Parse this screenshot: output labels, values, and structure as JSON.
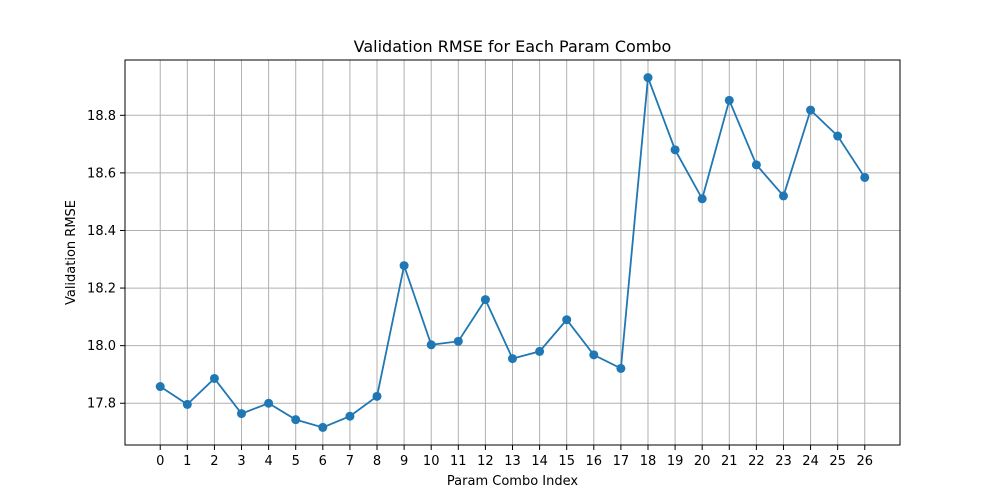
{
  "chart_data": {
    "type": "line",
    "title": "Validation RMSE for Each Param Combo",
    "xlabel": "Param Combo Index",
    "ylabel": "Validation RMSE",
    "x": [
      0,
      1,
      2,
      3,
      4,
      5,
      6,
      7,
      8,
      9,
      10,
      11,
      12,
      13,
      14,
      15,
      16,
      17,
      18,
      19,
      20,
      21,
      22,
      23,
      24,
      25,
      26
    ],
    "y": [
      17.858,
      17.796,
      17.886,
      17.764,
      17.8,
      17.743,
      17.716,
      17.755,
      17.824,
      18.278,
      18.003,
      18.015,
      18.16,
      17.955,
      17.98,
      18.09,
      17.968,
      17.921,
      18.931,
      18.68,
      18.51,
      18.852,
      18.628,
      18.52,
      18.818,
      18.728,
      18.584
    ],
    "xlim": [
      -1.3,
      27.3
    ],
    "ylim": [
      17.655,
      18.992
    ],
    "xticks": [
      "0",
      "1",
      "2",
      "3",
      "4",
      "5",
      "6",
      "7",
      "8",
      "9",
      "10",
      "11",
      "12",
      "13",
      "14",
      "15",
      "16",
      "17",
      "18",
      "19",
      "20",
      "21",
      "22",
      "23",
      "24",
      "25",
      "26"
    ],
    "yticks": [
      "17.8",
      "18.0",
      "18.2",
      "18.4",
      "18.6",
      "18.8"
    ],
    "grid": true,
    "color": "#1f77b4"
  }
}
